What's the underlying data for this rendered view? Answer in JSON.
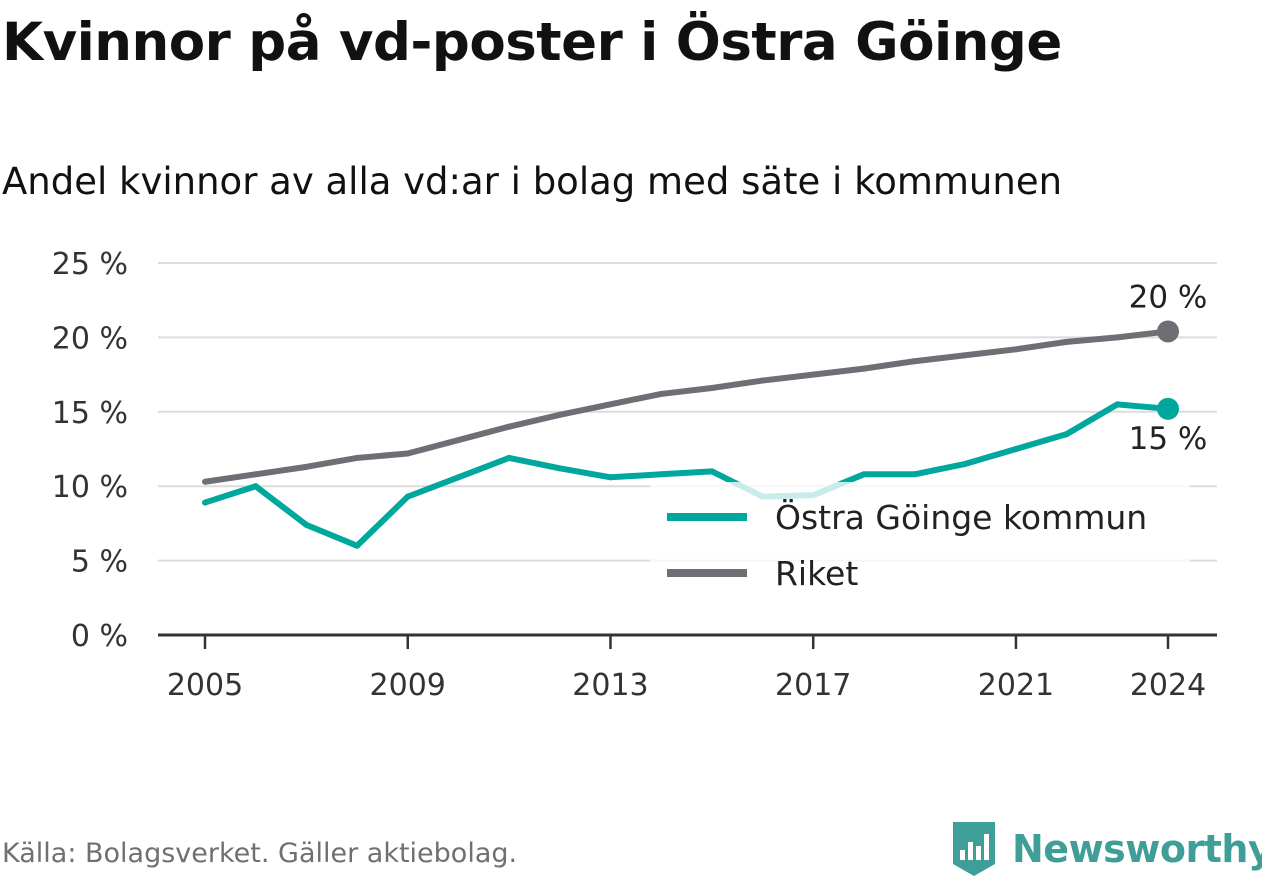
{
  "header": {
    "title": "Kvinnor på vd-poster i Östra Göinge",
    "subtitle": "Andel kvinnor av alla vd:ar i bolag med säte i kommunen"
  },
  "footer": {
    "source": "Källa: Bolagsverket. Gäller aktiebolag.",
    "brand": "Newsworthy"
  },
  "colors": {
    "primary": "#00a79d",
    "secondary": "#6e6e75",
    "grid": "#dcdcdc",
    "axis": "#333333",
    "brand": "#3f9e97"
  },
  "chart_data": {
    "type": "line",
    "x": [
      2005,
      2006,
      2007,
      2008,
      2009,
      2010,
      2011,
      2012,
      2013,
      2014,
      2015,
      2016,
      2017,
      2018,
      2019,
      2020,
      2021,
      2022,
      2023,
      2024
    ],
    "series": [
      {
        "name": "Östra Göinge kommun",
        "color": "#00a79d",
        "values": [
          8.9,
          10.0,
          7.4,
          6.0,
          9.3,
          10.6,
          11.9,
          11.2,
          10.6,
          10.8,
          11.0,
          9.3,
          9.4,
          10.8,
          10.8,
          11.5,
          12.5,
          13.5,
          15.5,
          15.2
        ],
        "end_label": "15 %"
      },
      {
        "name": "Riket",
        "color": "#6e6e75",
        "values": [
          10.3,
          10.8,
          11.3,
          11.9,
          12.2,
          13.1,
          14.0,
          14.8,
          15.5,
          16.2,
          16.6,
          17.1,
          17.5,
          17.9,
          18.4,
          18.8,
          19.2,
          19.7,
          20.0,
          20.4
        ],
        "end_label": "20 %"
      }
    ],
    "y_ticks": [
      "0 %",
      "5 %",
      "10 %",
      "15 %",
      "20 %",
      "25 %"
    ],
    "x_ticks": [
      "2005",
      "2009",
      "2013",
      "2017",
      "2021",
      "2024"
    ],
    "ylim": [
      0,
      25
    ],
    "xlim": [
      2005,
      2024
    ],
    "grid": true,
    "legend_position": "bottom-right"
  }
}
